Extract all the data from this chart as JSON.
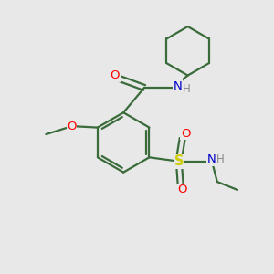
{
  "background_color": "#e8e8e8",
  "bond_color": "#3a6b3a",
  "atom_colors": {
    "O": "#ff0000",
    "N": "#0000cc",
    "S": "#cccc00",
    "C": "#3a6b3a",
    "H": "#888888"
  },
  "figsize": [
    3.0,
    3.0
  ],
  "dpi": 100
}
